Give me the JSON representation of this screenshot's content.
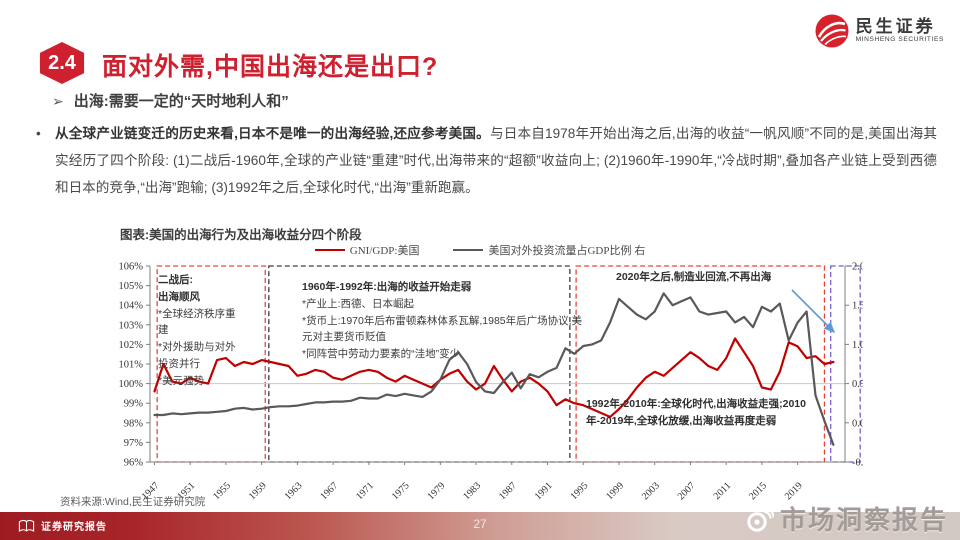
{
  "header": {
    "badge": "2.4",
    "title": "面对外需,中国出海还是出口?",
    "logo_cn": "民生证券",
    "logo_en": "MINSHENG SECURITIES",
    "accent_color": "#cf2030"
  },
  "subtitle": "出海:需要一定的“天时地利人和”",
  "paragraph": {
    "bold": "从全球产业链变迁的历史来看,日本不是唯一的出海经验,还应参考美国。",
    "rest": "与日本自1978年开始出海之后,出海的收益“一帆风顺”不同的是,美国出海其实经历了四个阶段: (1)二战后-1960年,全球的产业链“重建”时代,出海带来的“超额”收益向上; (2)1960年-1990年,“冷战时期”,叠加各产业链上受到西德和日本的竞争,“出海”跑输; (3)1992年之后,全球化时代,“出海”重新跑赢。"
  },
  "chart": {
    "caption": "图表:美国的出海行为及出海收益分四个阶段"
  },
  "chart_data": {
    "type": "line",
    "title": "美国的出海行为及出海收益分四个阶段",
    "x_range": [
      1946.5,
      2024.3
    ],
    "y_left_range": [
      96,
      106
    ],
    "y_right_range": [
      -0.5,
      2.0
    ],
    "y_left_ticks": [
      106,
      105,
      104,
      103,
      102,
      101,
      100,
      99,
      98,
      97,
      96
    ],
    "y_right_ticks": [
      [
        2,
        "2.0%"
      ],
      [
        1.5,
        "1.5%"
      ],
      [
        1,
        "1.0%"
      ],
      [
        0.5,
        "0.5%"
      ],
      [
        0,
        "0.0%"
      ],
      [
        -0.5,
        "-0.5%"
      ]
    ],
    "x_ticks": [
      1947,
      1951,
      1955,
      1959,
      1963,
      1967,
      1971,
      1975,
      1979,
      1983,
      1987,
      1991,
      1995,
      1999,
      2003,
      2007,
      2011,
      2015,
      2019
    ],
    "gridline_left_value": 100,
    "legend_position": "top-center",
    "years": [
      1947,
      1948,
      1949,
      1950,
      1951,
      1952,
      1953,
      1954,
      1955,
      1956,
      1957,
      1958,
      1959,
      1960,
      1961,
      1962,
      1963,
      1964,
      1965,
      1966,
      1967,
      1968,
      1969,
      1970,
      1971,
      1972,
      1973,
      1974,
      1975,
      1976,
      1977,
      1978,
      1979,
      1980,
      1981,
      1982,
      1983,
      1984,
      1985,
      1986,
      1987,
      1988,
      1989,
      1990,
      1991,
      1992,
      1993,
      1994,
      1995,
      1996,
      1997,
      1998,
      1999,
      2000,
      2001,
      2002,
      2003,
      2004,
      2005,
      2006,
      2007,
      2008,
      2009,
      2010,
      2011,
      2012,
      2013,
      2014,
      2015,
      2016,
      2017,
      2018,
      2019,
      2020,
      2021,
      2022,
      2023
    ],
    "series": [
      {
        "name": "GNI/GDP:美国",
        "axis": "left",
        "color": "#c00000",
        "values": [
          99.6,
          101.0,
          100.1,
          100.0,
          100.3,
          100.1,
          100.0,
          101.2,
          101.3,
          100.9,
          101.1,
          101.0,
          101.2,
          101.1,
          101.0,
          100.9,
          100.4,
          100.5,
          100.7,
          100.6,
          100.3,
          100.2,
          100.4,
          100.6,
          100.7,
          100.6,
          100.3,
          100.1,
          100.4,
          100.2,
          100.0,
          99.8,
          100.2,
          100.5,
          100.7,
          100.1,
          99.7,
          100.0,
          100.9,
          100.2,
          99.6,
          100.1,
          100.3,
          100.0,
          99.6,
          98.9,
          99.2,
          99.0,
          98.9,
          98.7,
          98.5,
          98.3,
          98.7,
          99.2,
          99.8,
          100.3,
          100.6,
          100.4,
          100.8,
          101.2,
          101.6,
          101.3,
          100.9,
          100.7,
          101.3,
          102.3,
          101.6,
          100.9,
          99.8,
          99.7,
          100.6,
          102.1,
          101.9,
          101.3,
          101.4,
          101.0,
          101.1
        ]
      },
      {
        "name": "美国对外投资流量占GDP比例 右",
        "axis": "right",
        "color": "#595959",
        "values": [
          0.1,
          0.1,
          0.12,
          0.11,
          0.12,
          0.13,
          0.13,
          0.14,
          0.15,
          0.18,
          0.19,
          0.17,
          0.18,
          0.2,
          0.21,
          0.21,
          0.22,
          0.24,
          0.26,
          0.26,
          0.27,
          0.27,
          0.28,
          0.32,
          0.31,
          0.31,
          0.36,
          0.34,
          0.37,
          0.35,
          0.33,
          0.4,
          0.55,
          0.8,
          0.9,
          0.75,
          0.52,
          0.4,
          0.38,
          0.52,
          0.64,
          0.44,
          0.62,
          0.58,
          0.65,
          0.7,
          0.95,
          0.88,
          0.98,
          1.0,
          1.05,
          1.28,
          1.58,
          1.48,
          1.38,
          1.32,
          1.42,
          1.65,
          1.5,
          1.55,
          1.6,
          1.42,
          1.38,
          1.4,
          1.42,
          1.28,
          1.35,
          1.22,
          1.48,
          1.42,
          1.52,
          1.05,
          1.28,
          1.42,
          0.35,
          0.02,
          -0.28
        ]
      }
    ],
    "stages": [
      {
        "start": 1947.3,
        "end": 1959.4,
        "color": "#e8453c"
      },
      {
        "start": 1959.8,
        "end": 1993.5,
        "color": "#404040"
      },
      {
        "start": 1994.2,
        "end": 2022.0,
        "color": "#e8453c"
      },
      {
        "start": 2022.7,
        "end": 2026.0,
        "color": "#7b5fd0"
      }
    ],
    "annotations": {
      "s1_title": "二战后:\n出海顺风",
      "s1_b1": "*全球经济秩序重建",
      "s1_b2": "*对外援助与对外投资并行",
      "s1_b3": "*美元强势",
      "s2_title": "1960年-1992年:出海的收益开始走弱",
      "s2_b1": "*产业上:西德、日本崛起",
      "s2_b2": "*货币上:1970年后布雷顿森林体系瓦解,1985年后广场协议,美元对主要货币贬值",
      "s2_b3": "*同阵营中劳动力要素的“洼地”变少",
      "s3_text": "1992年-2010年:全球化时代,出海收益走强;2010年-2019年,全球化放缓,出海收益再度走弱",
      "s4_text": "2020年之后,制造业回流,不再出海",
      "arrow_color": "#5b9bd5"
    }
  },
  "footer": {
    "source": "资料来源:Wind,民生证券研究院",
    "report_label": "证券研究报告",
    "page": "27",
    "watermark": "市场洞察报告"
  }
}
